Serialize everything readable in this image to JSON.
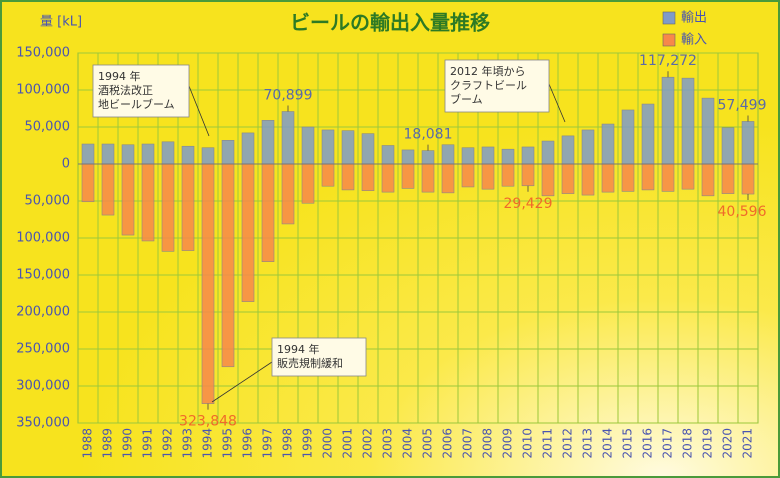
{
  "chart_data": {
    "type": "bar",
    "title": "ビールの輸出入量推移",
    "y_axis_label": "量 [kL]",
    "categories": [
      "1988",
      "1989",
      "1990",
      "1991",
      "1992",
      "1993",
      "1994",
      "1995",
      "1996",
      "1997",
      "1998",
      "1999",
      "2000",
      "2001",
      "2002",
      "2003",
      "2004",
      "2005",
      "2006",
      "2007",
      "2008",
      "2009",
      "2010",
      "2011",
      "2012",
      "2013",
      "2014",
      "2015",
      "2016",
      "2017",
      "2018",
      "2019",
      "2020",
      "2021"
    ],
    "series": [
      {
        "name": "輸出",
        "color": "#7f9bc9",
        "values": [
          27000,
          27000,
          26000,
          27000,
          30000,
          24000,
          22000,
          32000,
          42000,
          59000,
          70899,
          50000,
          46000,
          45000,
          41000,
          25000,
          19000,
          18081,
          26000,
          22000,
          23000,
          20000,
          23000,
          31000,
          38000,
          46000,
          54000,
          73000,
          81000,
          117272,
          116000,
          89000,
          49000,
          57499
        ],
        "value_labels": [
          null,
          null,
          null,
          null,
          null,
          null,
          null,
          null,
          null,
          null,
          "70,899",
          null,
          null,
          null,
          null,
          null,
          null,
          "18,081",
          null,
          null,
          null,
          null,
          null,
          null,
          null,
          null,
          null,
          null,
          null,
          "117,272",
          null,
          null,
          null,
          "57,499"
        ]
      },
      {
        "name": "輸入",
        "color": "#f7884a",
        "values": [
          -51000,
          -69000,
          -96000,
          -104000,
          -118000,
          -117000,
          -323848,
          -274000,
          -186000,
          -132000,
          -81000,
          -53000,
          -30000,
          -35000,
          -36000,
          -38000,
          -33000,
          -38000,
          -39000,
          -31000,
          -34000,
          -30000,
          -29429,
          -43000,
          -40000,
          -42000,
          -38000,
          -37000,
          -35000,
          -37000,
          -34000,
          -43000,
          -40000,
          -40596
        ],
        "value_labels": [
          null,
          null,
          null,
          null,
          null,
          null,
          "323,848",
          null,
          null,
          null,
          null,
          null,
          null,
          null,
          null,
          null,
          null,
          null,
          null,
          null,
          null,
          null,
          "29,429",
          null,
          null,
          null,
          null,
          null,
          null,
          null,
          null,
          null,
          null,
          "40,596"
        ]
      }
    ],
    "ylim": [
      -350000,
      150000
    ],
    "yticks": [
      {
        "value": 150000,
        "label": "150,000"
      },
      {
        "value": 100000,
        "label": "100,000"
      },
      {
        "value": 50000,
        "label": "50,000"
      },
      0,
      {
        "value": -50000,
        "label": "50,000"
      },
      {
        "value": -100000,
        "label": "100,000"
      },
      {
        "value": -150000,
        "label": "150,000"
      },
      {
        "value": -200000,
        "label": "200,000"
      },
      {
        "value": -250000,
        "label": "250,000"
      },
      {
        "value": -300000,
        "label": "300,000"
      },
      {
        "value": -350000,
        "label": "350,000"
      }
    ],
    "grid": true,
    "legend": "top-right",
    "annotations": [
      {
        "lines": [
          "1994 年",
          "酒税法改正",
          "地ビールブーム"
        ]
      },
      {
        "lines": [
          "2012 年頃から",
          "クラフトビール",
          "ブーム"
        ]
      },
      {
        "lines": [
          "1994 年",
          "販売規制緩和"
        ]
      }
    ]
  }
}
